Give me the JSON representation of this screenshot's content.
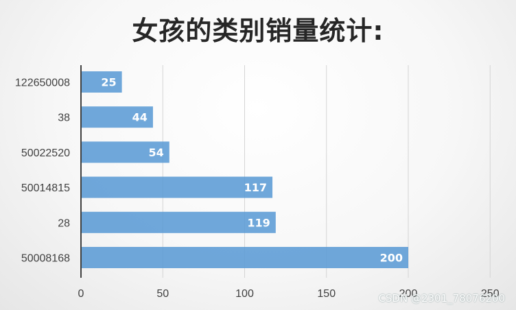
{
  "chart_data": {
    "type": "bar",
    "orientation": "horizontal",
    "title": "女孩的类别销量统计:",
    "categories": [
      "122650008",
      "38",
      "50022520",
      "50014815",
      "28",
      "50008168"
    ],
    "values": [
      25,
      44,
      54,
      117,
      119,
      200
    ],
    "xlim": [
      0,
      250
    ],
    "xticks": [
      0,
      50,
      100,
      150,
      200,
      250
    ],
    "grid": "vertical",
    "legend": "none",
    "bar_color": "#5b9bd5",
    "label_color": "#ffffff"
  },
  "watermark": "CSDN @2301_78076200"
}
